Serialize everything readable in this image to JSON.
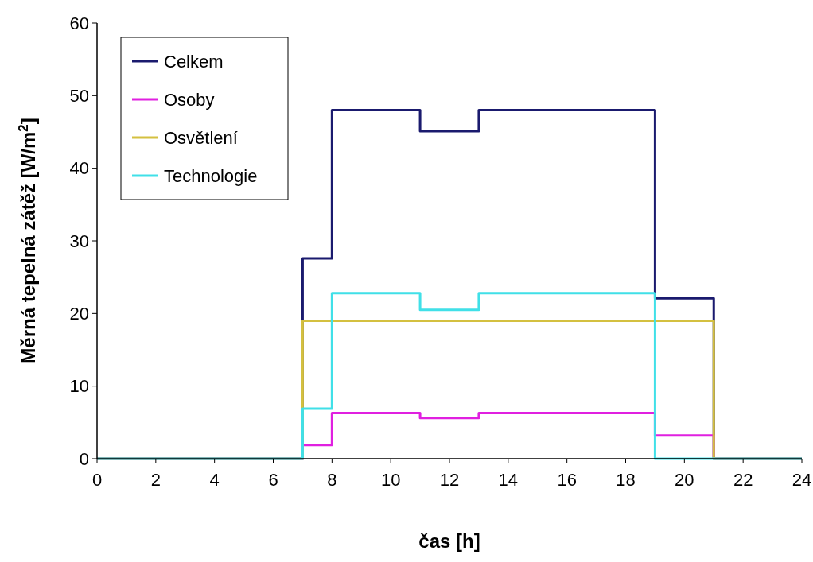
{
  "chart_data": {
    "type": "step",
    "xlabel": "čas [h]",
    "ylabel": "Měrná tepelná zátěž [W/m$^{2}$]",
    "xlim": [
      0,
      24
    ],
    "xticks": [
      0,
      2,
      4,
      6,
      8,
      10,
      12,
      14,
      16,
      18,
      20,
      22,
      24
    ],
    "ylim": [
      0,
      60
    ],
    "yticks": [
      0,
      10,
      20,
      30,
      40,
      50,
      60
    ],
    "x": [
      0,
      7,
      8,
      11,
      13,
      19,
      21,
      24
    ],
    "series": [
      {
        "name": "Celkem",
        "color": "#1a1a6e",
        "values": [
          0,
          27.6,
          48,
          45.1,
          48,
          22.1,
          0,
          0
        ]
      },
      {
        "name": "Osoby",
        "color": "#e020e0",
        "values": [
          0,
          1.9,
          6.3,
          5.6,
          6.3,
          3.2,
          0,
          0
        ]
      },
      {
        "name": "Osvětlení",
        "color": "#d4c040",
        "values": [
          0,
          19,
          19,
          19,
          19,
          19,
          0,
          0
        ]
      },
      {
        "name": "Technologie",
        "color": "#40e0e8",
        "values": [
          0,
          6.9,
          22.8,
          20.5,
          22.8,
          0,
          0,
          0
        ]
      }
    ],
    "legend": "top left",
    "grid": false
  }
}
